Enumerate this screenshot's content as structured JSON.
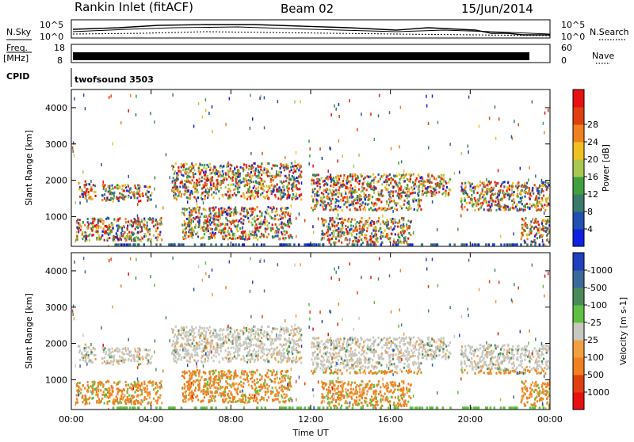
{
  "header": {
    "station": "Rankin Inlet (fitACF)",
    "beam": "Beam 02",
    "date": "15/Jun/2014"
  },
  "top_panels": {
    "nsky_label": "N.Sky",
    "nsearch_label": "N.Search",
    "freq_label_1": "Freq.",
    "freq_label_2": "[MHz]",
    "nave_label": "Nave",
    "cpid_label": "CPID",
    "cpid_value": "twofsound 3503",
    "left_ticks_sky": [
      "10^5",
      "10^0"
    ],
    "right_ticks_sky": [
      "10^5",
      "10^0"
    ],
    "left_ticks_freq": [
      "18",
      "8"
    ],
    "right_ticks_freq": [
      "60",
      "0"
    ]
  },
  "chart_data": [
    {
      "type": "heatmap",
      "name": "power",
      "ylabel": "Slant Range [km]",
      "xlabel": "Time UT",
      "x_ticks": [
        "00:00",
        "04:00",
        "08:00",
        "12:00",
        "16:00",
        "20:00",
        "00:00"
      ],
      "y_ticks": [
        "1000",
        "2000",
        "3000",
        "4000"
      ],
      "xlim_hours": [
        0,
        24
      ],
      "ylim_km": [
        180,
        4500
      ],
      "colorbar": {
        "label": "Power [dB]",
        "ticks": [
          "4",
          "8",
          "12",
          "16",
          "20",
          "24",
          "28"
        ],
        "colors": [
          "#1020e0",
          "#2050b0",
          "#3a7a6a",
          "#40a040",
          "#a8c850",
          "#f0c020",
          "#f08020",
          "#e04010",
          "#e81010"
        ]
      },
      "echo_bands": [
        {
          "t0": 0.3,
          "t1": 1.2,
          "r0": 1500,
          "r1": 2000
        },
        {
          "t0": 1.5,
          "t1": 4.0,
          "r0": 1450,
          "r1": 1900
        },
        {
          "t0": 0.2,
          "t1": 4.5,
          "r0": 350,
          "r1": 1000
        },
        {
          "t0": 5.0,
          "t1": 11.5,
          "r0": 1500,
          "r1": 2500
        },
        {
          "t0": 5.5,
          "t1": 11.0,
          "r0": 400,
          "r1": 1300
        },
        {
          "t0": 12.0,
          "t1": 17.5,
          "r0": 1200,
          "r1": 2200
        },
        {
          "t0": 12.5,
          "t1": 17.0,
          "r0": 300,
          "r1": 1000
        },
        {
          "t0": 17.5,
          "t1": 19.0,
          "r0": 1600,
          "r1": 2200
        },
        {
          "t0": 19.5,
          "t1": 24.0,
          "r0": 1200,
          "r1": 2000
        },
        {
          "t0": 22.5,
          "t1": 24.0,
          "r0": 300,
          "r1": 1000
        }
      ]
    },
    {
      "type": "heatmap",
      "name": "velocity",
      "ylabel": "Slant Range [km]",
      "xlabel": "Time UT",
      "x_ticks": [
        "00:00",
        "04:00",
        "08:00",
        "12:00",
        "16:00",
        "20:00",
        "00:00"
      ],
      "y_ticks": [
        "1000",
        "2000",
        "3000",
        "4000"
      ],
      "xlim_hours": [
        0,
        24
      ],
      "ylim_km": [
        180,
        4500
      ],
      "colorbar": {
        "label": "Velocity [m s-1]",
        "ticks": [
          "1000",
          "500",
          "100",
          "25",
          "-25",
          "-100",
          "-500",
          "-1000"
        ],
        "colors": [
          "#2040c0",
          "#3a6a9a",
          "#4a8a5a",
          "#60c040",
          "#c8c8c0",
          "#f0a040",
          "#f08020",
          "#e04010",
          "#e81010"
        ]
      }
    }
  ]
}
